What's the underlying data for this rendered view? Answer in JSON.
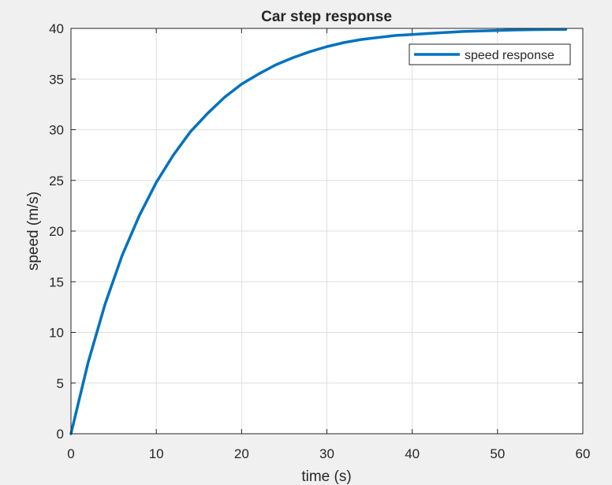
{
  "chart_data": {
    "type": "line",
    "title": "Car step response",
    "xlabel": "time (s)",
    "ylabel": "speed (m/s)",
    "xlim": [
      0,
      60
    ],
    "ylim": [
      0,
      40
    ],
    "xticks": [
      0,
      10,
      20,
      30,
      40,
      50,
      60
    ],
    "yticks": [
      0,
      5,
      10,
      15,
      20,
      25,
      30,
      35,
      40
    ],
    "xtick_labels": [
      "0",
      "10",
      "20",
      "30",
      "40",
      "50",
      "60"
    ],
    "ytick_labels": [
      "0",
      "5",
      "10",
      "15",
      "20",
      "25",
      "30",
      "35",
      "40"
    ],
    "grid": true,
    "legend_position": "top-right",
    "series": [
      {
        "name": "speed response",
        "color": "#0072bd",
        "x": [
          0,
          2,
          4,
          6,
          8,
          10,
          12,
          14,
          16,
          18,
          20,
          22,
          24,
          26,
          28,
          30,
          32,
          34,
          36,
          38,
          40,
          42,
          44,
          46,
          48,
          50,
          52,
          54,
          56,
          58
        ],
        "y": [
          0,
          7.0,
          12.8,
          17.6,
          21.5,
          24.8,
          27.5,
          29.8,
          31.6,
          33.2,
          34.5,
          35.5,
          36.4,
          37.1,
          37.7,
          38.2,
          38.6,
          38.9,
          39.1,
          39.3,
          39.4,
          39.5,
          39.6,
          39.7,
          39.75,
          39.8,
          39.84,
          39.87,
          39.89,
          39.9
        ]
      }
    ]
  }
}
